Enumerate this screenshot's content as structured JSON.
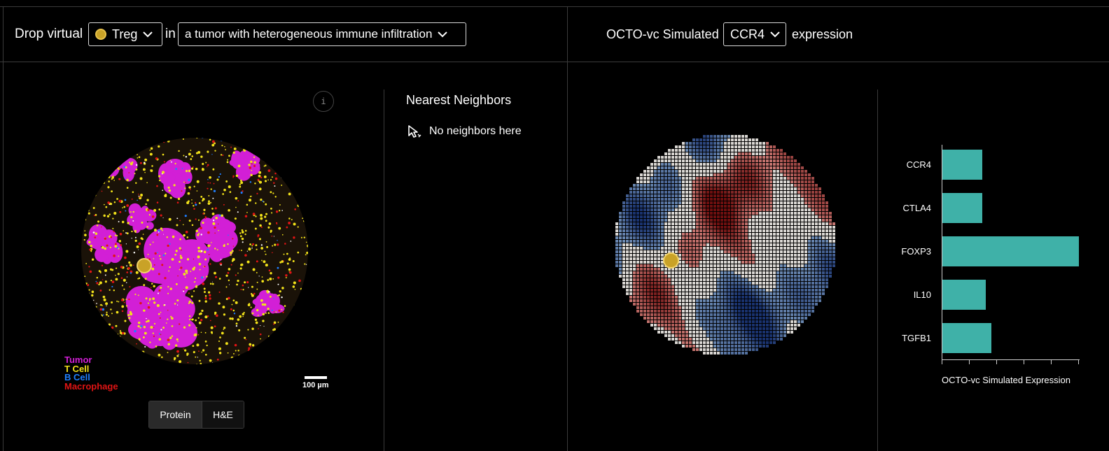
{
  "header": {
    "left": {
      "prefix": "Drop virtual",
      "cell_dropdown": {
        "value": "Treg",
        "icon": "cell-marker-icon"
      },
      "connector": "in",
      "context_dropdown": {
        "value": "a tumor with heterogeneous immune infiltration"
      }
    },
    "right": {
      "prefix": "OCTO-vc Simulated",
      "gene_dropdown": {
        "value": "CCR4"
      },
      "suffix": "expression"
    }
  },
  "tissue_panel": {
    "info_label": "i",
    "legend": [
      {
        "label": "Tumor",
        "color": "#d21fd6"
      },
      {
        "label": "T Cell",
        "color": "#f2e21a"
      },
      {
        "label": "B Cell",
        "color": "#1f7fff"
      },
      {
        "label": "Macrophage",
        "color": "#e01414"
      }
    ],
    "scale_bar_label": "100 µm",
    "view_toggle": {
      "options": [
        "Protein",
        "H&E"
      ],
      "selected": "Protein"
    }
  },
  "neighbors_panel": {
    "title": "Nearest Neighbors",
    "empty_message": "No neighbors here",
    "empty_icon": "cursor-click-icon"
  },
  "expression_chart": {
    "chart_data": {
      "type": "bar",
      "orientation": "horizontal",
      "categories": [
        "CCR4",
        "CTLA4",
        "FOXP3",
        "IL10",
        "TGFB1"
      ],
      "values": [
        0.29,
        0.29,
        1.0,
        0.32,
        0.36
      ],
      "xlim": [
        0,
        1
      ],
      "xlabel": "OCTO-vc Simulated Expression",
      "ylabel": "",
      "title": "",
      "bar_color": "#3fb1a8",
      "grid": false,
      "x_tick_count": 6
    }
  },
  "colors": {
    "background": "#000000",
    "divider": "#3a3a3a",
    "bar": "#3fb1a8",
    "virtual_cell": "#c9a227"
  }
}
